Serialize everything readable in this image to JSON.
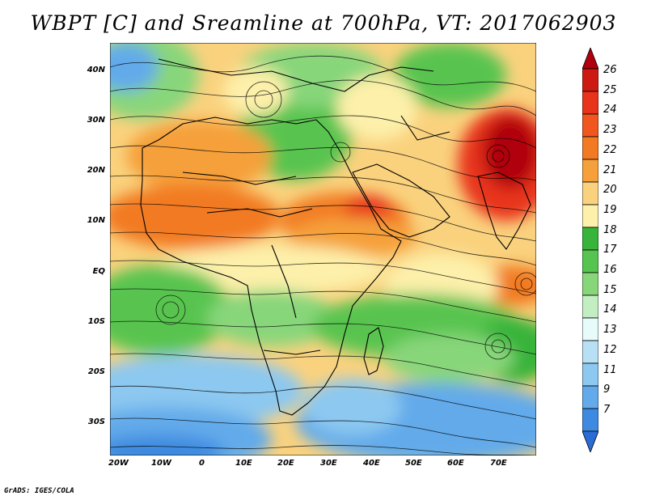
{
  "title": "WBPT [C] and Sreamline at 700hPa, VT: 2017062903",
  "credit": "GrADS: IGES/COLA",
  "lat_labels": [
    "40N",
    "30N",
    "20N",
    "10N",
    "EQ",
    "10S",
    "20S",
    "30S"
  ],
  "lon_labels": [
    "20W",
    "10W",
    "0",
    "10E",
    "20E",
    "30E",
    "40E",
    "50E",
    "60E",
    "70E"
  ],
  "colorbar": {
    "labels": [
      "26",
      "25",
      "24",
      "23",
      "22",
      "21",
      "20",
      "19",
      "18",
      "17",
      "16",
      "15",
      "14",
      "13",
      "12",
      "11",
      "9",
      "7"
    ],
    "colors": [
      "#b0000e",
      "#cc1a12",
      "#e8341a",
      "#f0561e",
      "#f27a22",
      "#f5a03a",
      "#fad27e",
      "#fdf0aa",
      "#38b43a",
      "#58c450",
      "#88d67a",
      "#c2eec2",
      "#e8fbfb",
      "#b8e0f4",
      "#8cc8f0",
      "#62aaea",
      "#3e8ae0",
      "#2a6cd4"
    ]
  }
}
